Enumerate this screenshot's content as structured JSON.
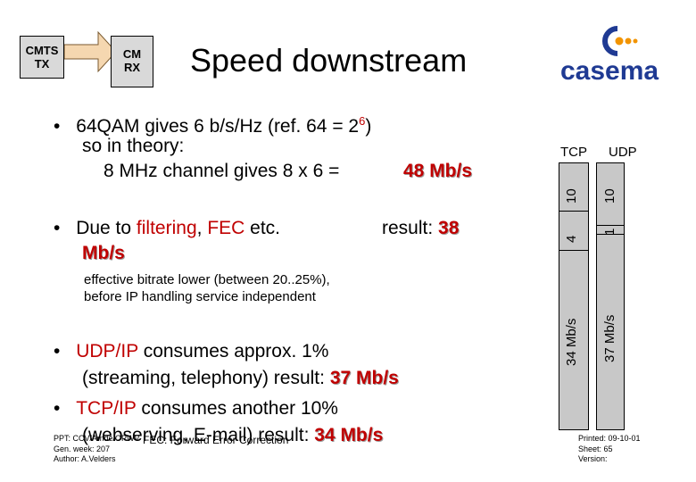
{
  "header": {
    "cmts": "CMTS\nTX",
    "cm": "CM\nRX",
    "title": "Speed downstream",
    "logo_text": "casema"
  },
  "bullets": {
    "b1_pre": "64QAM gives 6 b/s/Hz (ref. 64 = 2",
    "b1_sup": "6",
    "b1_post": ")",
    "b1_line2": "so in theory:",
    "b1_line3": "8 MHz channel gives 8 x 6 =",
    "b1_result": "48 Mb/s",
    "b2_pre": "Due to",
    "b2_filtering": "filtering",
    "b2_comma": ",",
    "b2_fec": "FEC",
    "b2_etc": "etc.",
    "b2_result_label": "result:",
    "b2_result_a": "38",
    "b2_result_b": "Mb/s",
    "sub1": "effective bitrate lower (between 20..25%),",
    "sub2": "before IP handling service independent",
    "b3_udp": "UDP/IP",
    "b3_rest": "consumes approx. 1%",
    "b3_line2": "(streaming, telephony)   result:",
    "b3_result": "37 Mb/s",
    "b4_tcp": "TCP/IP",
    "b4_rest": "consumes another 10%",
    "b4_line2": "(webserving, E-mail)       result:",
    "b4_result": "34 Mb/s"
  },
  "chart": {
    "tcp_label": "TCP",
    "udp_label": "UDP",
    "tcp_top": "10",
    "tcp_mid": "4",
    "tcp_bottom": "34 Mb/s",
    "udp_top": "10",
    "udp_mid": "1",
    "udp_bottom": "37 Mb/s"
  },
  "footer": {
    "fec_note": "FEC: Forward Error Correction",
    "ppt": "PPT: CCV/Amde/OPWV",
    "gen_week": "Gen. week: 207",
    "author": "Author: A.Velders",
    "printed": "Printed: 09-10-01",
    "sheet": "Sheet: 65",
    "version": "Version:"
  },
  "colors": {
    "highlight": "#c00000",
    "logo_blue": "#1f3a93",
    "logo_orange": "#f29400"
  }
}
